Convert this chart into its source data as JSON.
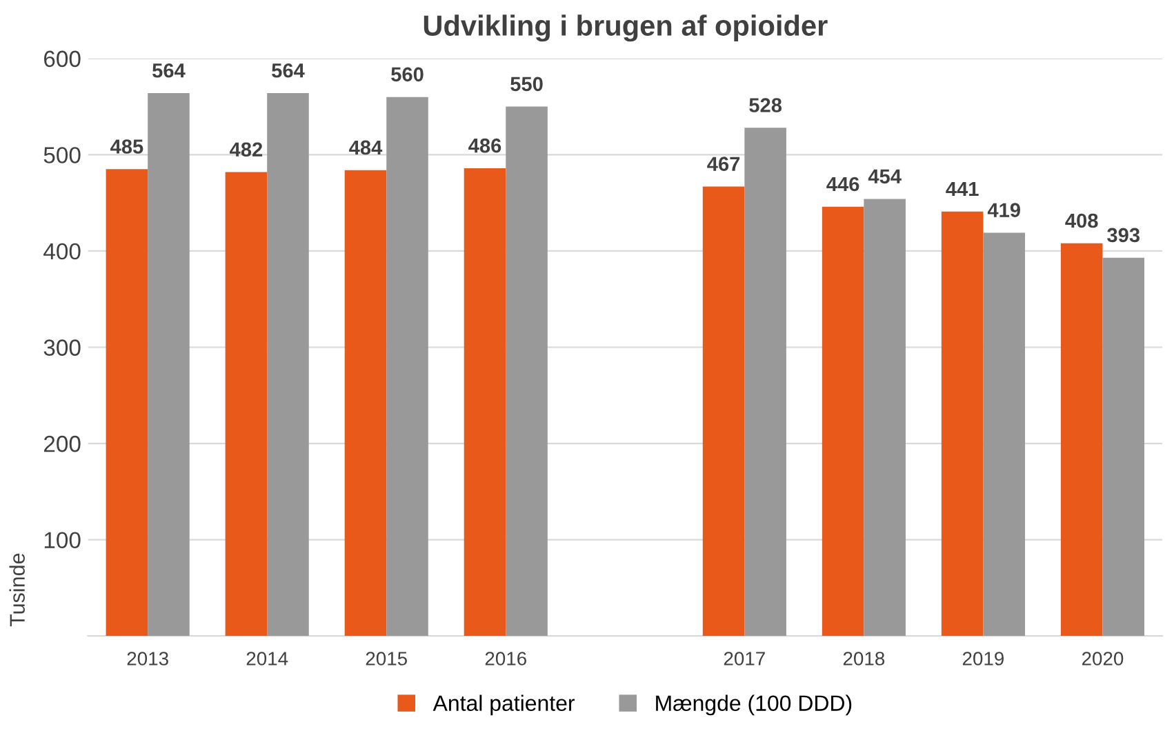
{
  "chart_data": {
    "type": "bar",
    "title": "Udvikling i brugen af opioider",
    "ylabel": "Tusinde",
    "categories": [
      "2013",
      "2014",
      "2015",
      "2016",
      null,
      "2017",
      "2018",
      "2019",
      "2020"
    ],
    "series": [
      {
        "name": "Antal patienter",
        "color": "#e8591a",
        "values": [
          485,
          482,
          484,
          486,
          null,
          467,
          446,
          441,
          408
        ]
      },
      {
        "name": "Mængde (100 DDD)",
        "color": "#999999",
        "values": [
          564,
          564,
          560,
          550,
          null,
          528,
          454,
          419,
          393
        ]
      }
    ],
    "ylim": [
      0,
      600
    ],
    "yticks": [
      100,
      200,
      300,
      400,
      500,
      600
    ],
    "grid": "y",
    "legend": "bottom",
    "data_labels": true
  }
}
